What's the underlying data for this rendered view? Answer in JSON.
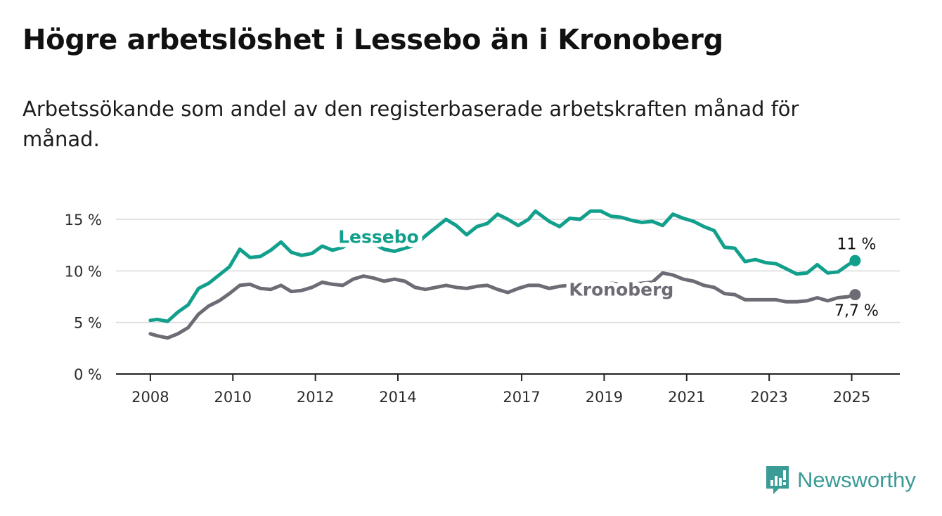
{
  "title": "Högre arbetslöshet i Lessebo än i Kronoberg",
  "subtitle": "Arbetssökande som andel av den registerbaserade arbetskraften månad för månad.",
  "brand": {
    "name": "Newsworthy",
    "icon": "newsworthy-logo-icon",
    "color": "#3a9b97"
  },
  "chart_data": {
    "type": "line",
    "title": "Högre arbetslöshet i Lessebo än i Kronoberg",
    "subtitle": "Arbetssökande som andel av den registerbaserade arbetskraften månad för månad.",
    "xlabel": "",
    "ylabel": "",
    "x_ticks": [
      "2008",
      "2010",
      "2012",
      "2014",
      "2017",
      "2019",
      "2021",
      "2023",
      "2025"
    ],
    "y_ticks": [
      "0 %",
      "5 %",
      "10 %",
      "15 %"
    ],
    "y_tick_values": [
      0,
      5,
      10,
      15
    ],
    "ylim": [
      0,
      16.5
    ],
    "xlim": [
      "2007-03",
      "2026-03"
    ],
    "grid": "horizontal",
    "series": [
      {
        "name": "Lessebo",
        "color": "#12a08c",
        "end_label": "11 %",
        "points": [
          [
            "2008-01",
            5.2
          ],
          [
            "2008-03",
            5.3
          ],
          [
            "2008-06",
            5.1
          ],
          [
            "2008-09",
            6.0
          ],
          [
            "2008-12",
            6.7
          ],
          [
            "2009-03",
            8.3
          ],
          [
            "2009-06",
            8.8
          ],
          [
            "2009-09",
            9.6
          ],
          [
            "2009-12",
            10.4
          ],
          [
            "2010-03",
            12.1
          ],
          [
            "2010-06",
            11.3
          ],
          [
            "2010-09",
            11.4
          ],
          [
            "2010-12",
            12.0
          ],
          [
            "2011-03",
            12.8
          ],
          [
            "2011-06",
            11.8
          ],
          [
            "2011-09",
            11.5
          ],
          [
            "2011-12",
            11.7
          ],
          [
            "2012-03",
            12.4
          ],
          [
            "2012-06",
            12.0
          ],
          [
            "2012-09",
            12.3
          ],
          [
            "2012-12",
            12.9
          ],
          [
            "2013-03",
            13.0
          ],
          [
            "2013-06",
            12.6
          ],
          [
            "2013-09",
            12.1
          ],
          [
            "2013-12",
            11.9
          ],
          [
            "2014-03",
            12.2
          ],
          [
            "2014-06",
            12.5
          ],
          [
            "2014-09",
            13.4
          ],
          [
            "2014-12",
            14.2
          ],
          [
            "2015-03",
            15.0
          ],
          [
            "2015-06",
            14.4
          ],
          [
            "2015-09",
            13.5
          ],
          [
            "2015-12",
            14.3
          ],
          [
            "2016-03",
            14.6
          ],
          [
            "2016-06",
            15.5
          ],
          [
            "2016-09",
            15.0
          ],
          [
            "2016-12",
            14.4
          ],
          [
            "2017-03",
            15.0
          ],
          [
            "2017-05",
            15.8
          ],
          [
            "2017-09",
            14.8
          ],
          [
            "2017-12",
            14.3
          ],
          [
            "2018-03",
            15.1
          ],
          [
            "2018-06",
            15.0
          ],
          [
            "2018-09",
            15.8
          ],
          [
            "2018-12",
            15.8
          ],
          [
            "2019-03",
            15.3
          ],
          [
            "2019-06",
            15.2
          ],
          [
            "2019-09",
            14.9
          ],
          [
            "2019-12",
            14.7
          ],
          [
            "2020-03",
            14.8
          ],
          [
            "2020-06",
            14.4
          ],
          [
            "2020-09",
            15.5
          ],
          [
            "2020-12",
            15.1
          ],
          [
            "2021-03",
            14.8
          ],
          [
            "2021-06",
            14.3
          ],
          [
            "2021-09",
            13.9
          ],
          [
            "2021-12",
            12.3
          ],
          [
            "2022-03",
            12.2
          ],
          [
            "2022-06",
            10.9
          ],
          [
            "2022-09",
            11.1
          ],
          [
            "2022-12",
            10.8
          ],
          [
            "2023-03",
            10.7
          ],
          [
            "2023-06",
            10.2
          ],
          [
            "2023-09",
            9.7
          ],
          [
            "2023-12",
            9.8
          ],
          [
            "2024-03",
            10.6
          ],
          [
            "2024-06",
            9.8
          ],
          [
            "2024-09",
            9.9
          ],
          [
            "2024-12",
            10.6
          ],
          [
            "2025-02",
            11.0
          ]
        ]
      },
      {
        "name": "Kronoberg",
        "color": "#6e6b75",
        "end_label": "7,7 %",
        "points": [
          [
            "2008-01",
            3.9
          ],
          [
            "2008-03",
            3.7
          ],
          [
            "2008-06",
            3.5
          ],
          [
            "2008-09",
            3.9
          ],
          [
            "2008-12",
            4.5
          ],
          [
            "2009-03",
            5.8
          ],
          [
            "2009-06",
            6.6
          ],
          [
            "2009-09",
            7.1
          ],
          [
            "2009-12",
            7.8
          ],
          [
            "2010-03",
            8.6
          ],
          [
            "2010-06",
            8.7
          ],
          [
            "2010-09",
            8.3
          ],
          [
            "2010-12",
            8.2
          ],
          [
            "2011-03",
            8.6
          ],
          [
            "2011-06",
            8.0
          ],
          [
            "2011-09",
            8.1
          ],
          [
            "2011-12",
            8.4
          ],
          [
            "2012-03",
            8.9
          ],
          [
            "2012-06",
            8.7
          ],
          [
            "2012-09",
            8.6
          ],
          [
            "2012-12",
            9.2
          ],
          [
            "2013-03",
            9.5
          ],
          [
            "2013-06",
            9.3
          ],
          [
            "2013-09",
            9.0
          ],
          [
            "2013-12",
            9.2
          ],
          [
            "2014-03",
            9.0
          ],
          [
            "2014-06",
            8.4
          ],
          [
            "2014-09",
            8.2
          ],
          [
            "2014-12",
            8.4
          ],
          [
            "2015-03",
            8.6
          ],
          [
            "2015-06",
            8.4
          ],
          [
            "2015-09",
            8.3
          ],
          [
            "2015-12",
            8.5
          ],
          [
            "2016-03",
            8.6
          ],
          [
            "2016-06",
            8.2
          ],
          [
            "2016-09",
            7.9
          ],
          [
            "2016-12",
            8.3
          ],
          [
            "2017-03",
            8.6
          ],
          [
            "2017-06",
            8.6
          ],
          [
            "2017-09",
            8.3
          ],
          [
            "2017-12",
            8.5
          ],
          [
            "2018-03",
            8.6
          ],
          [
            "2018-06",
            8.4
          ],
          [
            "2018-09",
            8.6
          ],
          [
            "2018-12",
            8.5
          ],
          [
            "2019-03",
            8.8
          ],
          [
            "2019-06",
            8.7
          ],
          [
            "2019-09",
            8.7
          ],
          [
            "2019-12",
            8.8
          ],
          [
            "2020-03",
            8.9
          ],
          [
            "2020-06",
            9.8
          ],
          [
            "2020-09",
            9.6
          ],
          [
            "2020-12",
            9.2
          ],
          [
            "2021-03",
            9.0
          ],
          [
            "2021-06",
            8.6
          ],
          [
            "2021-09",
            8.4
          ],
          [
            "2021-12",
            7.8
          ],
          [
            "2022-03",
            7.7
          ],
          [
            "2022-06",
            7.2
          ],
          [
            "2022-09",
            7.2
          ],
          [
            "2022-12",
            7.2
          ],
          [
            "2023-03",
            7.2
          ],
          [
            "2023-06",
            7.0
          ],
          [
            "2023-09",
            7.0
          ],
          [
            "2023-12",
            7.1
          ],
          [
            "2024-03",
            7.4
          ],
          [
            "2024-06",
            7.1
          ],
          [
            "2024-09",
            7.4
          ],
          [
            "2024-12",
            7.5
          ],
          [
            "2025-02",
            7.7
          ]
        ]
      }
    ]
  }
}
